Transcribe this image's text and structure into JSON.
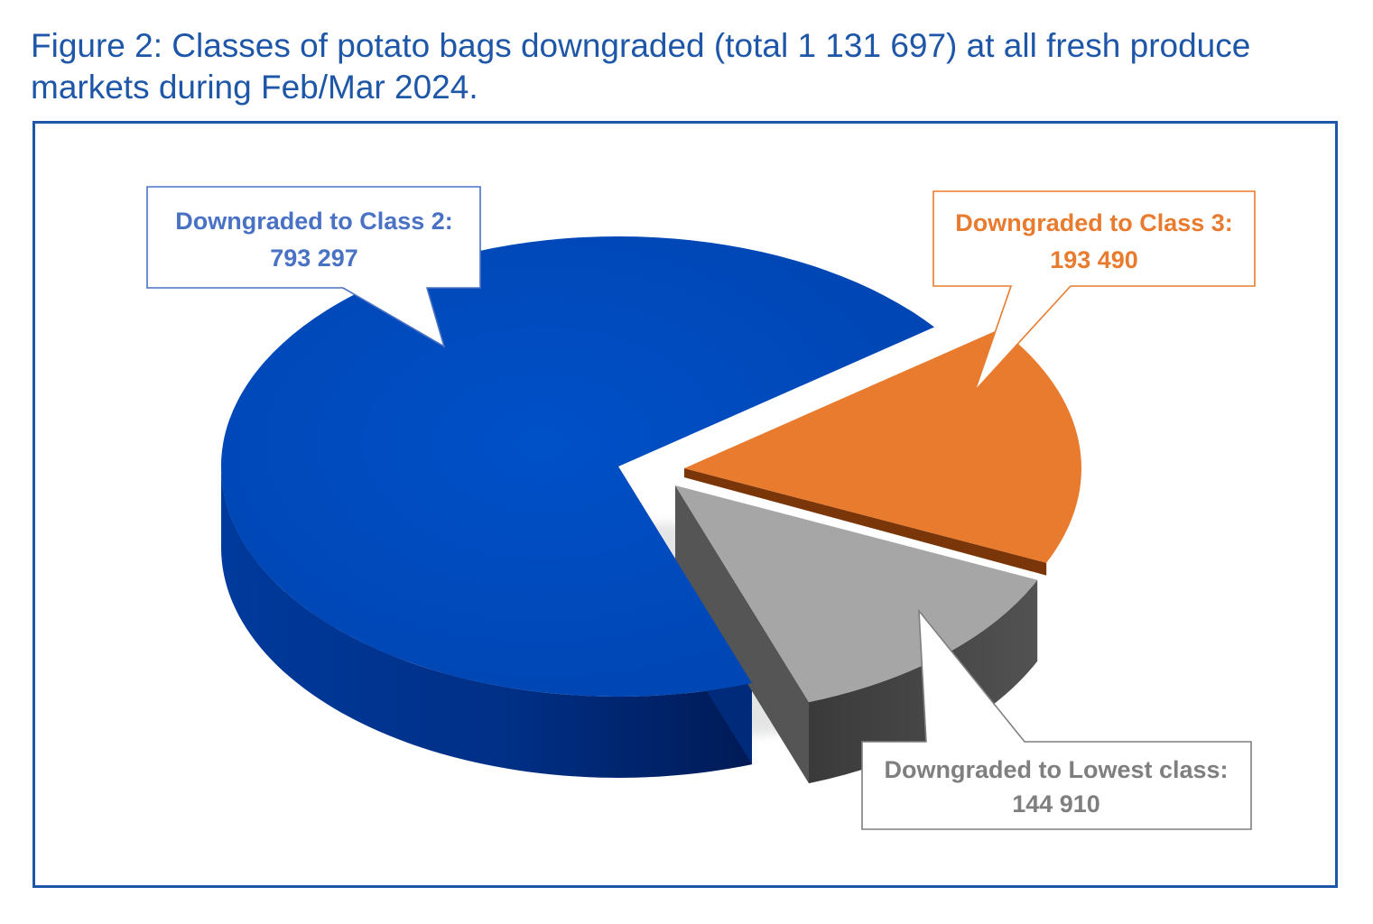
{
  "figure": {
    "title": "Figure 2: Classes of potato bags downgraded (total 1 131 697) at all fresh produce markets during Feb/Mar 2024."
  },
  "chart_data": {
    "type": "pie",
    "title": "Figure 2: Classes of potato bags downgraded (total 1 131 697) at all fresh produce markets during Feb/Mar 2024.",
    "total": 1131697,
    "slices": [
      {
        "label": "Downgraded to Class 2:",
        "value": 793297,
        "value_text": "793 297",
        "color": "#0047b8"
      },
      {
        "label": "Downgraded to Class 3:",
        "value": 193490,
        "value_text": "193 490",
        "color": "#e87b2e"
      },
      {
        "label": "Downgraded to Lowest class:",
        "value": 144910,
        "value_text": "144 910",
        "color": "#a6a6a6"
      }
    ],
    "three_d": true,
    "exploded": true,
    "legend": "none"
  },
  "colors": {
    "title": "#1e56a8",
    "frame": "#1e56a8",
    "class2_label": "#4a72c4",
    "class3_label": "#e87b2e",
    "lowest_label": "#7f7f7f"
  }
}
